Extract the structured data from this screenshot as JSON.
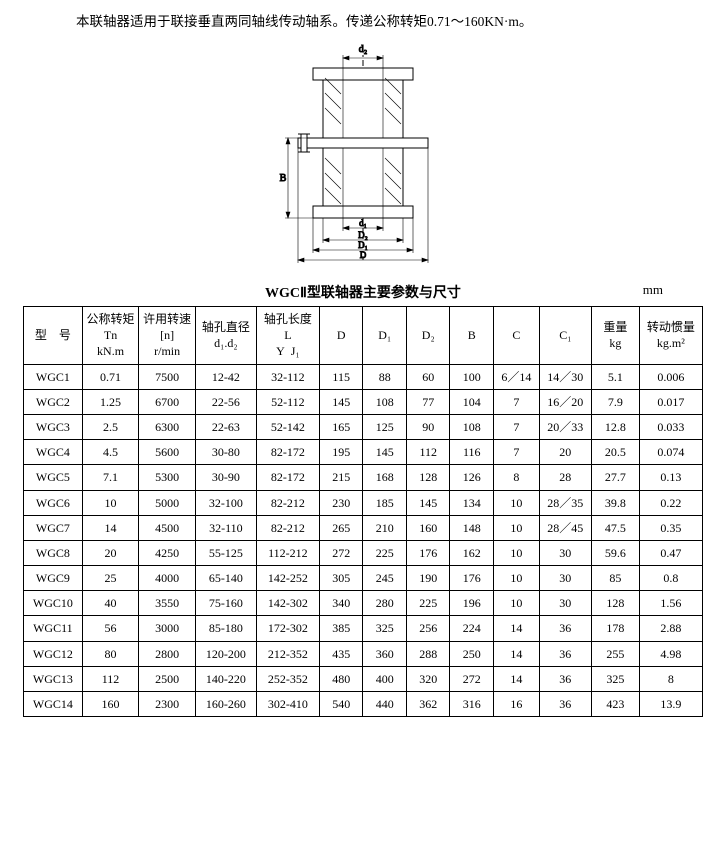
{
  "intro": "本联轴器适用于联接垂直两同轴线传动轴系。传递公称转矩0.71～160KN·m。",
  "diagram": {
    "labels": {
      "d2": "d₂",
      "d1": "d₁",
      "D2": "D₂",
      "D1": "D₁",
      "D": "D",
      "B": "B"
    },
    "stroke": "#000000",
    "fill_hatch": "#000000",
    "bg": "#ffffff"
  },
  "table": {
    "title": "WGCⅡ型联轴器主要参数与尺寸",
    "unit": "mm",
    "headers": {
      "model": "型　号",
      "tn": "公称转矩\nTn\nkN.m",
      "n": "许用转速\n[n]\nr/min",
      "d12": "轴孔直径\nd₁.d₂",
      "L": "轴孔长度\nL\nY  J₁",
      "D": "D",
      "D1": "D₁",
      "D2": "D₂",
      "B": "B",
      "C": "C",
      "C1": "C₁",
      "kg": "重量\nkg",
      "inertia": "转动惯量\nkg.m²"
    },
    "rows": [
      {
        "model": "WGC1",
        "tn": "0.71",
        "n": "7500",
        "d12": "12-42",
        "L": "32-112",
        "D": "115",
        "D1": "88",
        "D2": "60",
        "B": "100",
        "C": "6／14",
        "C1": "14／30",
        "kg": "5.1",
        "inertia": "0.006"
      },
      {
        "model": "WGC2",
        "tn": "1.25",
        "n": "6700",
        "d12": "22-56",
        "L": "52-112",
        "D": "145",
        "D1": "108",
        "D2": "77",
        "B": "104",
        "C": "7",
        "C1": "16／20",
        "kg": "7.9",
        "inertia": "0.017"
      },
      {
        "model": "WGC3",
        "tn": "2.5",
        "n": "6300",
        "d12": "22-63",
        "L": "52-142",
        "D": "165",
        "D1": "125",
        "D2": "90",
        "B": "108",
        "C": "7",
        "C1": "20／33",
        "kg": "12.8",
        "inertia": "0.033"
      },
      {
        "model": "WGC4",
        "tn": "4.5",
        "n": "5600",
        "d12": "30-80",
        "L": "82-172",
        "D": "195",
        "D1": "145",
        "D2": "112",
        "B": "116",
        "C": "7",
        "C1": "20",
        "kg": "20.5",
        "inertia": "0.074"
      },
      {
        "model": "WGC5",
        "tn": "7.1",
        "n": "5300",
        "d12": "30-90",
        "L": "82-172",
        "D": "215",
        "D1": "168",
        "D2": "128",
        "B": "126",
        "C": "8",
        "C1": "28",
        "kg": "27.7",
        "inertia": "0.13"
      },
      {
        "model": "WGC6",
        "tn": "10",
        "n": "5000",
        "d12": "32-100",
        "L": "82-212",
        "D": "230",
        "D1": "185",
        "D2": "145",
        "B": "134",
        "C": "10",
        "C1": "28／35",
        "kg": "39.8",
        "inertia": "0.22"
      },
      {
        "model": "WGC7",
        "tn": "14",
        "n": "4500",
        "d12": "32-110",
        "L": "82-212",
        "D": "265",
        "D1": "210",
        "D2": "160",
        "B": "148",
        "C": "10",
        "C1": "28／45",
        "kg": "47.5",
        "inertia": "0.35"
      },
      {
        "model": "WGC8",
        "tn": "20",
        "n": "4250",
        "d12": "55-125",
        "L": "112-212",
        "D": "272",
        "D1": "225",
        "D2": "176",
        "B": "162",
        "C": "10",
        "C1": "30",
        "kg": "59.6",
        "inertia": "0.47"
      },
      {
        "model": "WGC9",
        "tn": "25",
        "n": "4000",
        "d12": "65-140",
        "L": "142-252",
        "D": "305",
        "D1": "245",
        "D2": "190",
        "B": "176",
        "C": "10",
        "C1": "30",
        "kg": "85",
        "inertia": "0.8"
      },
      {
        "model": "WGC10",
        "tn": "40",
        "n": "3550",
        "d12": "75-160",
        "L": "142-302",
        "D": "340",
        "D1": "280",
        "D2": "225",
        "B": "196",
        "C": "10",
        "C1": "30",
        "kg": "128",
        "inertia": "1.56"
      },
      {
        "model": "WGC11",
        "tn": "56",
        "n": "3000",
        "d12": "85-180",
        "L": "172-302",
        "D": "385",
        "D1": "325",
        "D2": "256",
        "B": "224",
        "C": "14",
        "C1": "36",
        "kg": "178",
        "inertia": "2.88"
      },
      {
        "model": "WGC12",
        "tn": "80",
        "n": "2800",
        "d12": "120-200",
        "L": "212-352",
        "D": "435",
        "D1": "360",
        "D2": "288",
        "B": "250",
        "C": "14",
        "C1": "36",
        "kg": "255",
        "inertia": "4.98"
      },
      {
        "model": "WGC13",
        "tn": "112",
        "n": "2500",
        "d12": "140-220",
        "L": "252-352",
        "D": "480",
        "D1": "400",
        "D2": "320",
        "B": "272",
        "C": "14",
        "C1": "36",
        "kg": "325",
        "inertia": "8"
      },
      {
        "model": "WGC14",
        "tn": "160",
        "n": "2300",
        "d12": "160-260",
        "L": "302-410",
        "D": "540",
        "D1": "440",
        "D2": "362",
        "B": "316",
        "C": "16",
        "C1": "36",
        "kg": "423",
        "inertia": "13.9"
      }
    ]
  }
}
